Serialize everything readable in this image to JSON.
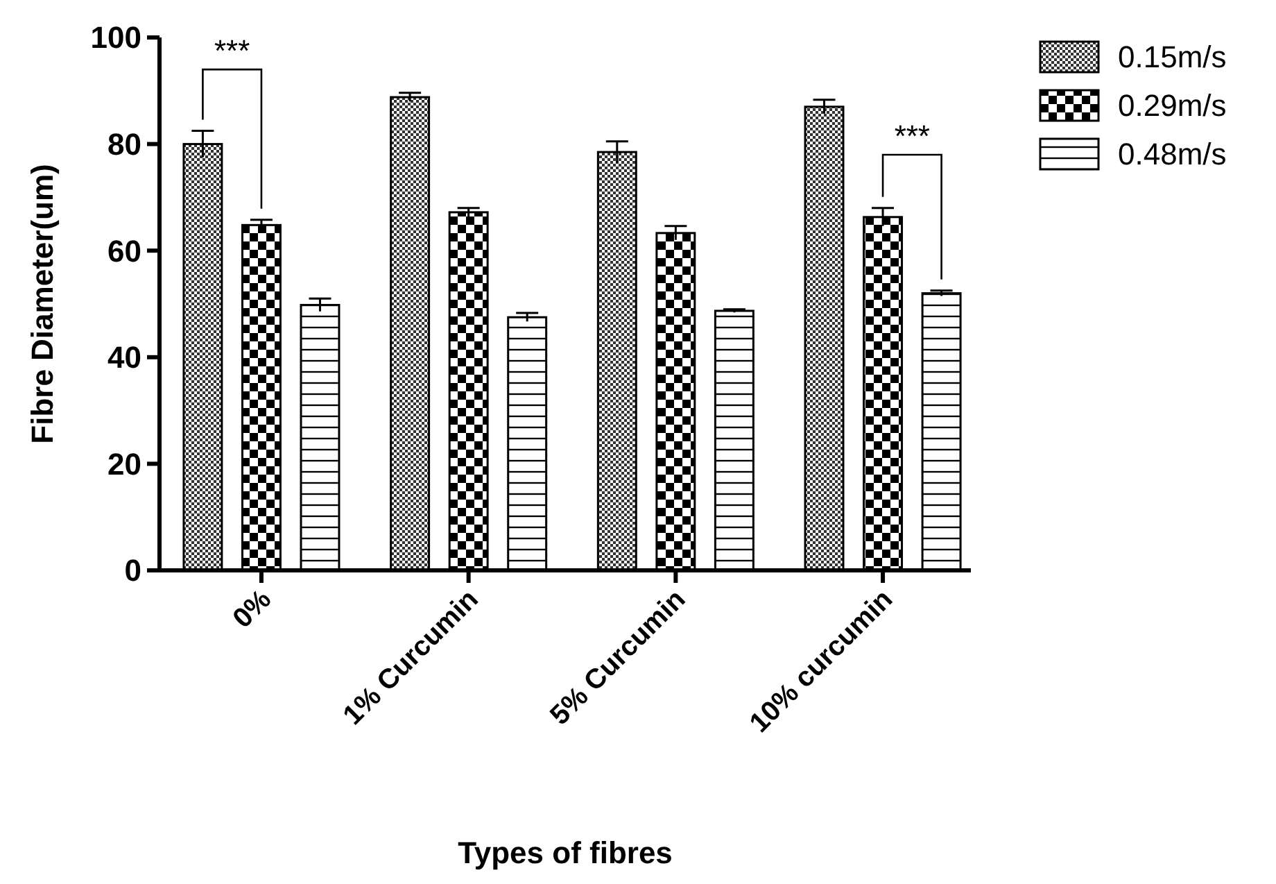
{
  "chart_data": {
    "type": "bar",
    "xlabel": "Types of fibres",
    "ylabel": "Fibre Diameter(um)",
    "categories": [
      "0%",
      "1% Curcumin",
      "5% Curcumin",
      "10% curcumin"
    ],
    "series": [
      {
        "name": "0.15m/s",
        "color": "#000000",
        "values": [
          80,
          88.8,
          78.5,
          87
        ],
        "errors": [
          2.5,
          0.8,
          2,
          1.3
        ]
      },
      {
        "name": "0.29m/s",
        "color": "#000000",
        "values": [
          64.8,
          67.2,
          63.3,
          66.3
        ],
        "errors": [
          1,
          0.8,
          1.3,
          1.7
        ]
      },
      {
        "name": "0.48m/s",
        "color": "#000000",
        "values": [
          49.8,
          47.5,
          48.7,
          52
        ],
        "errors": [
          1.2,
          0.8,
          0.3,
          0.5
        ]
      }
    ],
    "ylim": [
      0,
      100
    ],
    "yticks": [
      0,
      20,
      40,
      60,
      80,
      100
    ],
    "grid": false,
    "legend": "right",
    "annotations": [
      "***",
      "***"
    ]
  }
}
